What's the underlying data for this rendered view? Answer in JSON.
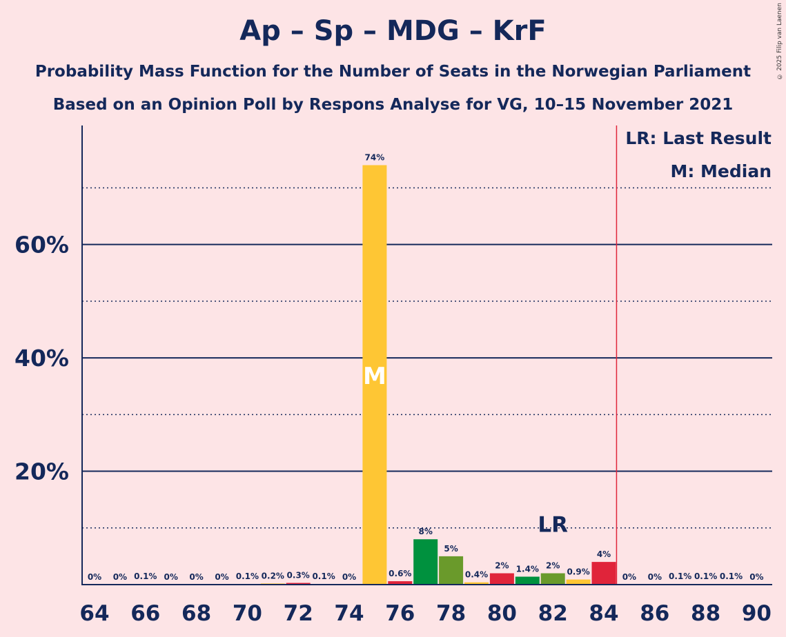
{
  "title": "Ap – Sp – MDG – KrF",
  "subtitle1": "Probability Mass Function for the Number of Seats in the Norwegian Parliament",
  "subtitle2": "Based on an Opinion Poll by Respons Analyse for VG, 10–15 November 2021",
  "copyright": "© 2025 Filip van Laenen",
  "legend": {
    "lr": "LR: Last Result",
    "m": "M: Median"
  },
  "colors": {
    "background": "#fde4e6",
    "text": "#14285a",
    "majority_line": "#e0243a",
    "Ap": "#e0243a",
    "Sp": "#00913e",
    "MDG": "#6a9a2b",
    "KrF": "#fec634"
  },
  "chart_data": {
    "type": "bar",
    "x": [
      64,
      65,
      66,
      67,
      68,
      69,
      70,
      71,
      72,
      73,
      74,
      75,
      76,
      77,
      78,
      79,
      80,
      81,
      82,
      83,
      84,
      85,
      86,
      87,
      88,
      89,
      90
    ],
    "values": [
      0,
      0,
      0.1,
      0,
      0,
      0,
      0.1,
      0.2,
      0.3,
      0.1,
      0,
      74,
      0.6,
      8,
      5,
      0.4,
      2,
      1.4,
      2,
      0.9,
      4,
      0,
      0,
      0.1,
      0.1,
      0.1,
      0
    ],
    "labels": [
      "0%",
      "0%",
      "0.1%",
      "0%",
      "0%",
      "0%",
      "0.1%",
      "0.2%",
      "0.3%",
      "0.1%",
      "0%",
      "74%",
      "0.6%",
      "8%",
      "5%",
      "0.4%",
      "2%",
      "1.4%",
      "2%",
      "0.9%",
      "4%",
      "0%",
      "0%",
      "0.1%",
      "0.1%",
      "0.1%",
      "0%"
    ],
    "bar_colors": [
      "Ap",
      "Sp",
      "MDG",
      "KrF",
      "Ap",
      "Sp",
      "MDG",
      "KrF",
      "Ap",
      "Sp",
      "MDG",
      "KrF",
      "Ap",
      "Sp",
      "MDG",
      "KrF",
      "Ap",
      "Sp",
      "MDG",
      "KrF",
      "Ap",
      "Sp",
      "MDG",
      "KrF",
      "Ap",
      "Sp",
      "MDG"
    ],
    "x_tick_labels": [
      "64",
      "66",
      "68",
      "70",
      "72",
      "74",
      "76",
      "78",
      "80",
      "82",
      "84",
      "86",
      "88",
      "90"
    ],
    "y_tick_labels": [
      "20%",
      "40%",
      "60%"
    ],
    "y_tick_values": [
      20,
      40,
      60
    ],
    "minor_grid_values": [
      10,
      30,
      50,
      70
    ],
    "ylim": [
      0,
      81
    ],
    "xlim": [
      63.5,
      90.5
    ],
    "median_seat": 75,
    "median_label": "M",
    "last_result_seat": 82,
    "last_result_label": "LR",
    "majority_threshold": 84.5,
    "grid": true,
    "legend_position": "top-right"
  }
}
